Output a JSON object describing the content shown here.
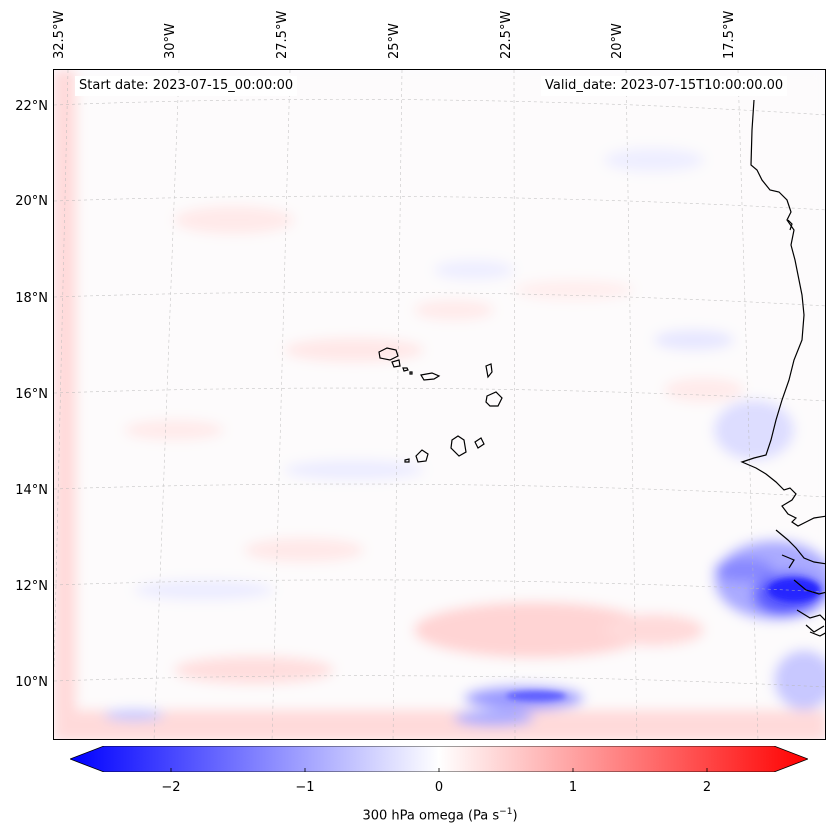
{
  "map": {
    "start_date": "Start date: 2023-07-15_00:00:00",
    "valid_date": "Valid_date: 2023-07-15T10:00:00.00",
    "colors": {
      "positive": "#ff0000",
      "negative": "#0000ff",
      "coast": "#000000",
      "gridline": "#b0b0b0"
    },
    "longitude_labels": [
      "32.5°W",
      "30°W",
      "27.5°W",
      "25°W",
      "22.5°W",
      "20°W",
      "17.5°W"
    ],
    "latitude_labels": [
      "22°N",
      "20°N",
      "18°N",
      "16°N",
      "14°N",
      "12°N",
      "10°N"
    ]
  },
  "colorbar": {
    "ticks": [
      "−2",
      "−1",
      "0",
      "1",
      "2"
    ],
    "label": "300 hPa omega (Pa s",
    "label_sup": "−1",
    "label_end": ")"
  }
}
